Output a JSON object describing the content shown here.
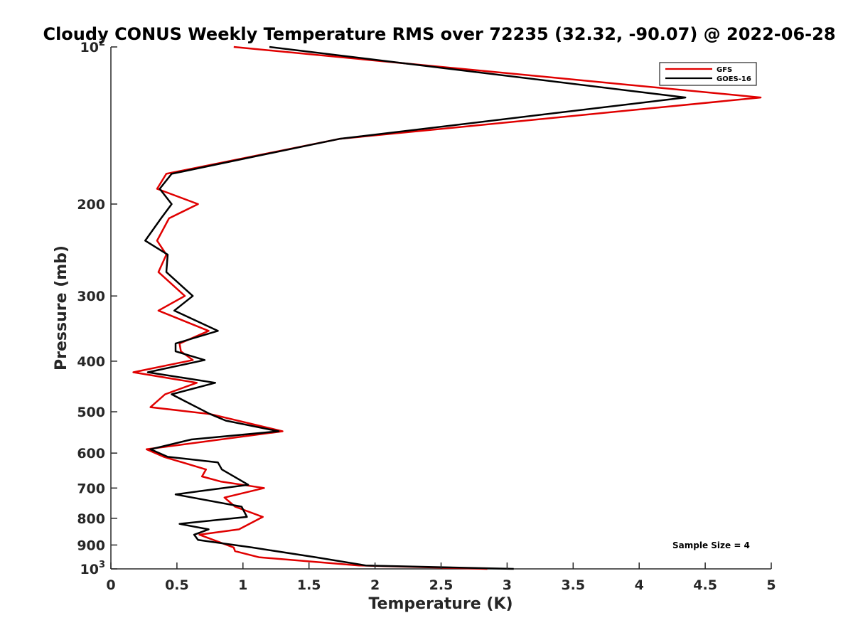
{
  "chart_data": {
    "type": "line",
    "title": "Cloudy CONUS Weekly Temperature RMS over 72235 (32.32, -90.07) @ 2022-06-28",
    "xlabel": "Temperature (K)",
    "ylabel": "Pressure (mb)",
    "xlim": [
      0,
      5
    ],
    "ylim": [
      100,
      1000
    ],
    "y_scale": "log",
    "y_reversed": true,
    "grid": false,
    "legend_position": "top-right",
    "x_ticks": [
      "0",
      "0.5",
      "1",
      "1.5",
      "2",
      "2.5",
      "3",
      "3.5",
      "4",
      "4.5",
      "5"
    ],
    "x_tick_values": [
      0,
      0.5,
      1,
      1.5,
      2,
      2.5,
      3,
      3.5,
      4,
      4.5,
      5
    ],
    "y_ticks": [
      {
        "value": 100,
        "base": "10",
        "exp": "2"
      },
      {
        "value": 200,
        "label": "200"
      },
      {
        "value": 300,
        "label": "300"
      },
      {
        "value": 400,
        "label": "400"
      },
      {
        "value": 500,
        "label": "500"
      },
      {
        "value": 600,
        "label": "600"
      },
      {
        "value": 700,
        "label": "700"
      },
      {
        "value": 800,
        "label": "800"
      },
      {
        "value": 900,
        "label": "900"
      },
      {
        "value": 1000,
        "base": "10",
        "exp": "3"
      }
    ],
    "series": [
      {
        "name": "GFS",
        "color": "#e00000",
        "points": [
          [
            0.93,
            100
          ],
          [
            4.92,
            125
          ],
          [
            1.73,
            150
          ],
          [
            0.42,
            175
          ],
          [
            0.35,
            187
          ],
          [
            0.66,
            200
          ],
          [
            0.44,
            213
          ],
          [
            0.35,
            235
          ],
          [
            0.42,
            250
          ],
          [
            0.36,
            270
          ],
          [
            0.56,
            300
          ],
          [
            0.36,
            320
          ],
          [
            0.74,
            350
          ],
          [
            0.52,
            370
          ],
          [
            0.53,
            383
          ],
          [
            0.62,
            398
          ],
          [
            0.17,
            420
          ],
          [
            0.65,
            440
          ],
          [
            0.41,
            463
          ],
          [
            0.3,
            490
          ],
          [
            0.75,
            505
          ],
          [
            1.3,
            545
          ],
          [
            0.27,
            590
          ],
          [
            0.4,
            610
          ],
          [
            0.72,
            645
          ],
          [
            0.69,
            665
          ],
          [
            0.83,
            680
          ],
          [
            1.16,
            700
          ],
          [
            0.86,
            730
          ],
          [
            0.94,
            760
          ],
          [
            1.15,
            795
          ],
          [
            0.97,
            840
          ],
          [
            0.67,
            860
          ],
          [
            0.93,
            910
          ],
          [
            0.94,
            925
          ],
          [
            1.12,
            950
          ],
          [
            1.88,
            985
          ],
          [
            2.85,
            1000
          ]
        ]
      },
      {
        "name": "GOES-16",
        "color": "#000000",
        "points": [
          [
            1.2,
            100
          ],
          [
            4.35,
            125
          ],
          [
            1.73,
            150
          ],
          [
            0.46,
            175
          ],
          [
            0.37,
            187
          ],
          [
            0.46,
            200
          ],
          [
            0.38,
            213
          ],
          [
            0.26,
            235
          ],
          [
            0.43,
            250
          ],
          [
            0.42,
            270
          ],
          [
            0.62,
            300
          ],
          [
            0.48,
            320
          ],
          [
            0.81,
            350
          ],
          [
            0.49,
            370
          ],
          [
            0.49,
            383
          ],
          [
            0.71,
            398
          ],
          [
            0.28,
            420
          ],
          [
            0.79,
            440
          ],
          [
            0.46,
            463
          ],
          [
            0.75,
            505
          ],
          [
            0.87,
            520
          ],
          [
            1.27,
            545
          ],
          [
            0.61,
            565
          ],
          [
            0.3,
            590
          ],
          [
            0.43,
            610
          ],
          [
            0.81,
            625
          ],
          [
            0.84,
            645
          ],
          [
            1.04,
            690
          ],
          [
            0.67,
            710
          ],
          [
            0.49,
            720
          ],
          [
            0.99,
            760
          ],
          [
            1.03,
            795
          ],
          [
            0.52,
            820
          ],
          [
            0.74,
            840
          ],
          [
            0.63,
            860
          ],
          [
            0.66,
            880
          ],
          [
            1.07,
            910
          ],
          [
            1.55,
            950
          ],
          [
            1.93,
            985
          ],
          [
            3.05,
            1000
          ]
        ]
      }
    ],
    "annotation": "Sample Size = 4"
  }
}
